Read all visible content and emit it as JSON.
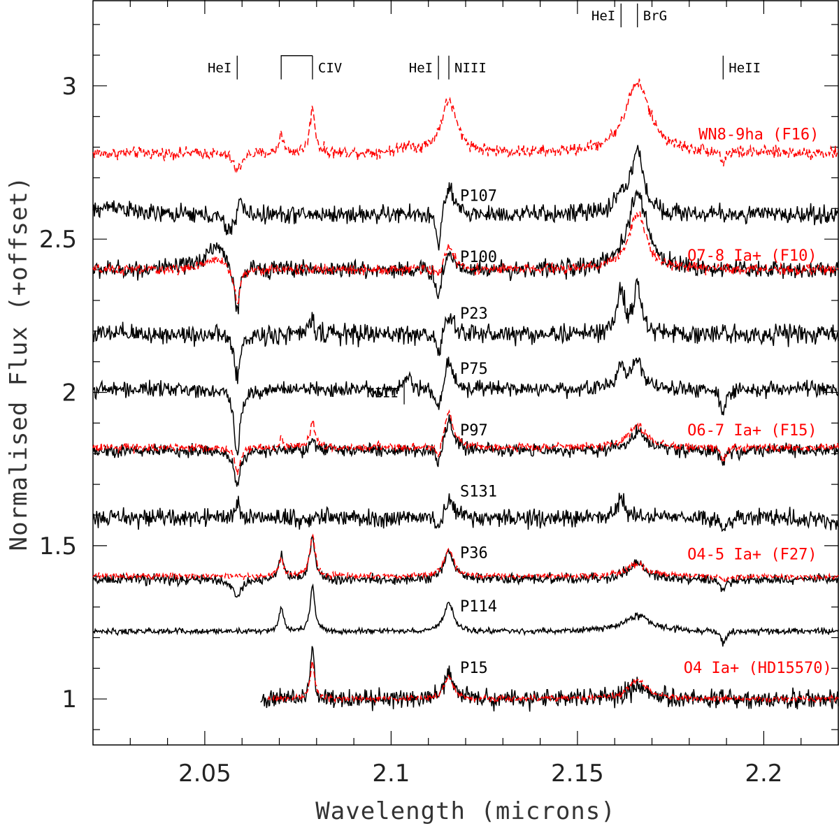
{
  "chart_data": {
    "type": "line",
    "title": "",
    "xlabel": "Wavelength (microns)",
    "ylabel": "Normalised Flux (+offset)",
    "xlim": [
      2.02,
      2.22
    ],
    "ylim": [
      0.85,
      3.28
    ],
    "x_ticks": [
      {
        "value": 2.05,
        "label": "2.05"
      },
      {
        "value": 2.1,
        "label": "2.1"
      },
      {
        "value": 2.15,
        "label": "2.15"
      },
      {
        "value": 2.2,
        "label": "2.2"
      }
    ],
    "y_ticks": [
      {
        "value": 1.0,
        "label": "1"
      },
      {
        "value": 1.5,
        "label": "1.5"
      },
      {
        "value": 2.0,
        "label": "2"
      },
      {
        "value": 2.5,
        "label": "2.5"
      },
      {
        "value": 3.0,
        "label": "3"
      }
    ],
    "line_ids": [
      {
        "label": "HeI",
        "x": 2.0587,
        "y": 3.03,
        "side": "left"
      },
      {
        "label": "CIV",
        "x": 2.0789,
        "y": 3.03,
        "side": "right",
        "bracket_x1": 2.0705
      },
      {
        "label": "HeI",
        "x": 2.1127,
        "y": 3.03,
        "side": "left"
      },
      {
        "label": "NIII",
        "x": 2.1155,
        "y": 3.03,
        "side": "right"
      },
      {
        "label": "HeI",
        "x": 2.1617,
        "y": 3.2,
        "side": "left"
      },
      {
        "label": "BrG",
        "x": 2.1661,
        "y": 3.2,
        "side": "right"
      },
      {
        "label": "HeII",
        "x": 2.1891,
        "y": 3.03,
        "side": "right"
      },
      {
        "label": "NIII",
        "x": 2.1035,
        "y": 1.97,
        "side": "left"
      }
    ],
    "series": [
      {
        "name": "WN8-9ha (F16)",
        "style": "dashed",
        "color": "#ff0000",
        "label": "WN8-9ha (F16)",
        "label_x": 2.1825,
        "label_y": 2.825,
        "x_start": 2.02,
        "x_end": 2.22,
        "baseline": 2.78,
        "noise": 0.012,
        "features": [
          [
            2.0587,
            -0.06,
            0.0012
          ],
          [
            2.0705,
            0.07,
            0.0006
          ],
          [
            2.0789,
            0.15,
            0.0008
          ],
          [
            2.1045,
            0.02,
            0.002
          ],
          [
            2.1155,
            0.17,
            0.0025
          ],
          [
            2.1661,
            0.23,
            0.004
          ],
          [
            2.1891,
            -0.04,
            0.0006
          ]
        ]
      },
      {
        "name": "P107",
        "style": "solid",
        "color": "#000000",
        "label": "P107",
        "label_x": 2.1185,
        "label_y": 2.625,
        "x_start": 2.02,
        "x_end": 2.22,
        "baseline": 2.58,
        "noise": 0.018,
        "features": [
          [
            2.0255,
            0.03,
            0.004
          ],
          [
            2.0565,
            -0.06,
            0.0015
          ],
          [
            2.0595,
            0.06,
            0.0008
          ],
          [
            2.1127,
            -0.12,
            0.0008
          ],
          [
            2.1155,
            0.09,
            0.0015
          ],
          [
            2.1617,
            0.05,
            0.002
          ],
          [
            2.1661,
            0.2,
            0.002
          ]
        ]
      },
      {
        "name": "P100",
        "style": "solid",
        "color": "#000000",
        "label": "P100",
        "label_x": 2.1185,
        "label_y": 2.425,
        "x_start": 2.02,
        "x_end": 2.22,
        "baseline": 2.4,
        "noise": 0.018,
        "features": [
          [
            2.053,
            0.08,
            0.0035
          ],
          [
            2.0587,
            -0.16,
            0.0009
          ],
          [
            2.1127,
            -0.11,
            0.0008
          ],
          [
            2.1155,
            0.06,
            0.0015
          ],
          [
            2.1661,
            0.25,
            0.003
          ]
        ]
      },
      {
        "name": "O7-8 Ia+ (F10)",
        "style": "dashed",
        "color": "#ff0000",
        "label": "O7-8 Ia+ (F10)",
        "label_x": 2.1795,
        "label_y": 2.43,
        "x_start": 2.02,
        "x_end": 2.22,
        "baseline": 2.4,
        "noise": 0.01,
        "features": [
          [
            2.053,
            0.04,
            0.003
          ],
          [
            2.0587,
            -0.12,
            0.0009
          ],
          [
            2.1127,
            -0.04,
            0.0008
          ],
          [
            2.1155,
            0.08,
            0.0015
          ],
          [
            2.1661,
            0.18,
            0.003
          ]
        ]
      },
      {
        "name": "P23",
        "style": "solid",
        "color": "#000000",
        "label": "P23",
        "label_x": 2.1185,
        "label_y": 2.24,
        "x_start": 2.02,
        "x_end": 2.22,
        "baseline": 2.19,
        "noise": 0.02,
        "features": [
          [
            2.0587,
            -0.15,
            0.0009
          ],
          [
            2.0789,
            0.05,
            0.0008
          ],
          [
            2.1127,
            -0.08,
            0.0008
          ],
          [
            2.1155,
            0.06,
            0.0015
          ],
          [
            2.1617,
            0.14,
            0.0012
          ],
          [
            2.1661,
            0.15,
            0.0012
          ]
        ]
      },
      {
        "name": "P75",
        "style": "solid",
        "color": "#000000",
        "label": "P75",
        "label_x": 2.1185,
        "label_y": 2.06,
        "x_start": 2.02,
        "x_end": 2.22,
        "baseline": 2.01,
        "noise": 0.015,
        "features": [
          [
            2.0587,
            -0.22,
            0.0009
          ],
          [
            2.1045,
            0.04,
            0.001
          ],
          [
            2.1127,
            -0.08,
            0.0008
          ],
          [
            2.1155,
            0.1,
            0.0012
          ],
          [
            2.1617,
            0.08,
            0.0012
          ],
          [
            2.1661,
            0.1,
            0.0015
          ],
          [
            2.1891,
            -0.08,
            0.0008
          ]
        ]
      },
      {
        "name": "P97",
        "style": "solid",
        "color": "#000000",
        "label": "P97",
        "label_x": 2.1185,
        "label_y": 1.86,
        "x_start": 2.02,
        "x_end": 2.22,
        "baseline": 1.81,
        "noise": 0.013,
        "features": [
          [
            2.0587,
            -0.12,
            0.0009
          ],
          [
            2.0789,
            0.03,
            0.0008
          ],
          [
            2.1127,
            -0.07,
            0.0008
          ],
          [
            2.1155,
            0.1,
            0.0015
          ],
          [
            2.1661,
            0.06,
            0.003
          ],
          [
            2.1891,
            -0.04,
            0.0008
          ]
        ]
      },
      {
        "name": "O6-7 Ia+ (F15)",
        "style": "dashed",
        "color": "#ff0000",
        "label": "O6-7 Ia+ (F15)",
        "label_x": 2.1795,
        "label_y": 1.86,
        "x_start": 2.02,
        "x_end": 2.22,
        "baseline": 1.82,
        "noise": 0.008,
        "features": [
          [
            2.0587,
            -0.08,
            0.0009
          ],
          [
            2.0705,
            0.03,
            0.0006
          ],
          [
            2.0789,
            0.09,
            0.0008
          ],
          [
            2.1127,
            -0.05,
            0.0008
          ],
          [
            2.1155,
            0.11,
            0.0015
          ],
          [
            2.1661,
            0.07,
            0.003
          ],
          [
            2.1891,
            -0.04,
            0.0008
          ]
        ]
      },
      {
        "name": "S131",
        "style": "solid",
        "color": "#000000",
        "label": "S131",
        "label_x": 2.1185,
        "label_y": 1.66,
        "x_start": 2.02,
        "x_end": 2.22,
        "baseline": 1.59,
        "noise": 0.018,
        "features": [
          [
            2.0587,
            0.04,
            0.0012
          ],
          [
            2.1127,
            -0.05,
            0.0008
          ],
          [
            2.1155,
            0.06,
            0.0015
          ],
          [
            2.1617,
            0.07,
            0.001
          ],
          [
            2.1891,
            -0.04,
            0.001
          ]
        ]
      },
      {
        "name": "P36",
        "style": "solid",
        "color": "#000000",
        "label": "P36",
        "label_x": 2.1185,
        "label_y": 1.46,
        "x_start": 2.02,
        "x_end": 2.22,
        "baseline": 1.39,
        "noise": 0.01,
        "features": [
          [
            2.0587,
            -0.06,
            0.0015
          ],
          [
            2.0705,
            0.08,
            0.0008
          ],
          [
            2.0789,
            0.14,
            0.0008
          ],
          [
            2.1155,
            0.09,
            0.0015
          ],
          [
            2.1661,
            0.05,
            0.003
          ],
          [
            2.1891,
            -0.04,
            0.0008
          ]
        ]
      },
      {
        "name": "O4-5 Ia+ (F27)",
        "style": "dashed",
        "color": "#ff0000",
        "label": "O4-5 Ia+ (F27)",
        "label_x": 2.1795,
        "label_y": 1.455,
        "x_start": 2.02,
        "x_end": 2.22,
        "baseline": 1.4,
        "noise": 0.006,
        "features": [
          [
            2.0705,
            0.06,
            0.0008
          ],
          [
            2.0789,
            0.14,
            0.0008
          ],
          [
            2.1155,
            0.09,
            0.0015
          ],
          [
            2.1661,
            0.04,
            0.003
          ],
          [
            2.1891,
            -0.02,
            0.0008
          ]
        ]
      },
      {
        "name": "P114",
        "style": "solid",
        "color": "#000000",
        "label": "P114",
        "label_x": 2.1185,
        "label_y": 1.285,
        "x_start": 2.02,
        "x_end": 2.22,
        "baseline": 1.22,
        "noise": 0.006,
        "features": [
          [
            2.0705,
            0.08,
            0.0007
          ],
          [
            2.0789,
            0.15,
            0.0007
          ],
          [
            2.1155,
            0.09,
            0.0015
          ],
          [
            2.1661,
            0.05,
            0.0045
          ],
          [
            2.1891,
            -0.04,
            0.0008
          ]
        ]
      },
      {
        "name": "P15",
        "style": "solid",
        "color": "#000000",
        "label": "P15",
        "label_x": 2.1185,
        "label_y": 1.085,
        "x_start": 2.065,
        "x_end": 2.22,
        "baseline": 1.0,
        "noise": 0.02,
        "features": [
          [
            2.0789,
            0.17,
            0.0006
          ],
          [
            2.1155,
            0.08,
            0.0015
          ],
          [
            2.1661,
            0.04,
            0.003
          ]
        ]
      },
      {
        "name": "O4 Ia+ (HD15570)",
        "style": "dashed",
        "color": "#ff0000",
        "label": "O4 Ia+ (HD15570)",
        "label_x": 2.1785,
        "label_y": 1.085,
        "x_start": 2.067,
        "x_end": 2.22,
        "baseline": 1.0,
        "noise": 0.006,
        "features": [
          [
            2.0789,
            0.12,
            0.0007
          ],
          [
            2.1155,
            0.07,
            0.0015
          ],
          [
            2.1661,
            0.06,
            0.003
          ]
        ]
      }
    ]
  }
}
